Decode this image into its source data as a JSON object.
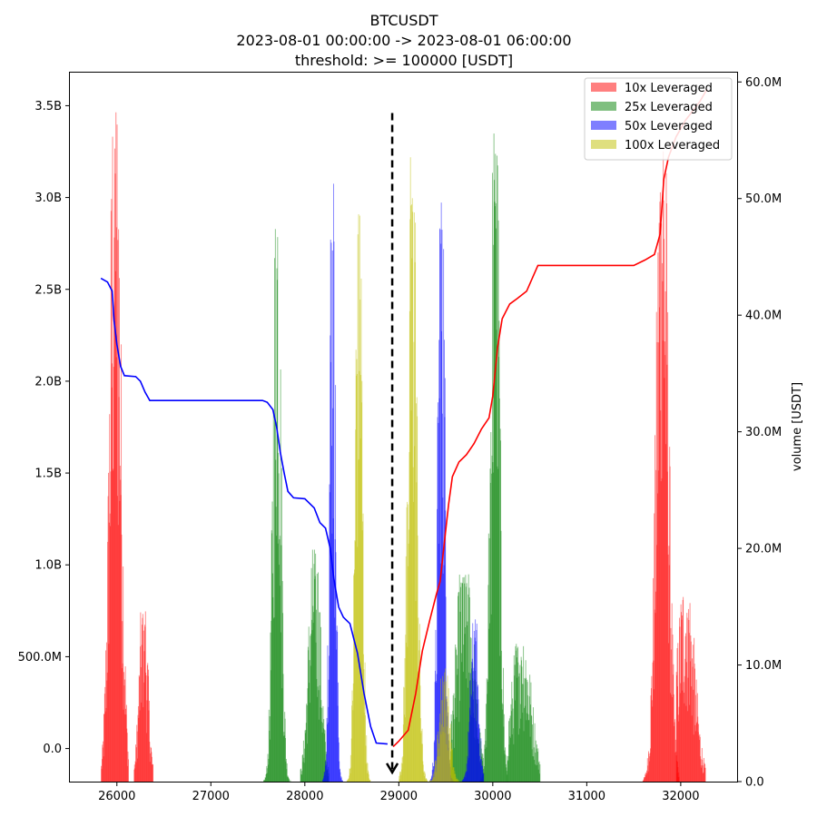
{
  "chart_data": {
    "type": "bar",
    "title_lines": [
      "BTCUSDT",
      "2023-08-01 00:00:00 -> 2023-08-01 06:00:00",
      "threshold: >= 100000 [USDT]"
    ],
    "xlim": [
      25500,
      32600
    ],
    "ylim_left": [
      -180000000,
      3680000000
    ],
    "ylim_right": [
      0,
      60800000
    ],
    "ylabel_right": "volume [USDT]",
    "x_ticks": [
      {
        "value": 26000,
        "label": "26000"
      },
      {
        "value": 27000,
        "label": "27000"
      },
      {
        "value": 28000,
        "label": "28000"
      },
      {
        "value": 29000,
        "label": "29000"
      },
      {
        "value": 30000,
        "label": "30000"
      },
      {
        "value": 31000,
        "label": "31000"
      },
      {
        "value": 32000,
        "label": "32000"
      }
    ],
    "y_left_ticks": [
      {
        "value": 0,
        "label": "0.0"
      },
      {
        "value": 500000000,
        "label": "500.0M"
      },
      {
        "value": 1000000000,
        "label": "1.0B"
      },
      {
        "value": 1500000000,
        "label": "1.5B"
      },
      {
        "value": 2000000000,
        "label": "2.0B"
      },
      {
        "value": 2500000000,
        "label": "2.5B"
      },
      {
        "value": 3000000000,
        "label": "3.0B"
      },
      {
        "value": 3500000000,
        "label": "3.5B"
      }
    ],
    "y_right_ticks": [
      {
        "value": 0,
        "label": "0.0"
      },
      {
        "value": 10000000,
        "label": "10.0M"
      },
      {
        "value": 20000000,
        "label": "20.0M"
      },
      {
        "value": 30000000,
        "label": "30.0M"
      },
      {
        "value": 40000000,
        "label": "40.0M"
      },
      {
        "value": 50000000,
        "label": "50.0M"
      },
      {
        "value": 60000000,
        "label": "60.0M"
      }
    ],
    "legend_position": "top-right",
    "series": [
      {
        "name": "10x Leveraged",
        "color": "#ff0000",
        "opacity": 0.5,
        "clusters": [
          {
            "center": 25980,
            "spread": 55,
            "peak": 59000000,
            "from": 25830,
            "to": 26120
          },
          {
            "center": 26280,
            "spread": 45,
            "peak": 15000000,
            "from": 26180,
            "to": 26380
          },
          {
            "center": 31800,
            "spread": 60,
            "peak": 56000000,
            "from": 31550,
            "to": 31980
          },
          {
            "center": 32050,
            "spread": 90,
            "peak": 16000000,
            "from": 31950,
            "to": 32260
          }
        ]
      },
      {
        "name": "25x Leveraged",
        "color": "#008000",
        "opacity": 0.5,
        "clusters": [
          {
            "center": 27700,
            "spread": 40,
            "peak": 50000000,
            "from": 27550,
            "to": 27850
          },
          {
            "center": 28100,
            "spread": 60,
            "peak": 20000000,
            "from": 27950,
            "to": 28250
          },
          {
            "center": 30020,
            "spread": 45,
            "peak": 57000000,
            "from": 29800,
            "to": 30150
          },
          {
            "center": 29700,
            "spread": 90,
            "peak": 18000000,
            "from": 29550,
            "to": 29900
          },
          {
            "center": 30300,
            "spread": 100,
            "peak": 12000000,
            "from": 30150,
            "to": 30500
          }
        ]
      },
      {
        "name": "50x Leveraged",
        "color": "#0000ff",
        "opacity": 0.5,
        "clusters": [
          {
            "center": 28290,
            "spread": 30,
            "peak": 52000000,
            "from": 28150,
            "to": 28400
          },
          {
            "center": 29450,
            "spread": 35,
            "peak": 53000000,
            "from": 29320,
            "to": 29580
          },
          {
            "center": 29800,
            "spread": 40,
            "peak": 14000000,
            "from": 29650,
            "to": 29900
          }
        ]
      },
      {
        "name": "100x Leveraged",
        "color": "#bfbf00",
        "opacity": 0.5,
        "clusters": [
          {
            "center": 28570,
            "spread": 35,
            "peak": 52000000,
            "from": 28420,
            "to": 28750
          },
          {
            "center": 29140,
            "spread": 45,
            "peak": 54000000,
            "from": 29000,
            "to": 29300
          },
          {
            "center": 29480,
            "spread": 50,
            "peak": 10000000,
            "from": 29250,
            "to": 29650
          }
        ]
      }
    ],
    "cumulative_lines": [
      {
        "color": "#0000ff",
        "points": [
          [
            25830,
            2560000000
          ],
          [
            25900,
            2540000000
          ],
          [
            25950,
            2490000000
          ],
          [
            25970,
            2330000000
          ],
          [
            26000,
            2200000000
          ],
          [
            26040,
            2080000000
          ],
          [
            26080,
            2030000000
          ],
          [
            26200,
            2025000000
          ],
          [
            26250,
            2000000000
          ],
          [
            26300,
            1940000000
          ],
          [
            26350,
            1895000000
          ],
          [
            26500,
            1895000000
          ],
          [
            27000,
            1895000000
          ],
          [
            27550,
            1895000000
          ],
          [
            27600,
            1885000000
          ],
          [
            27660,
            1845000000
          ],
          [
            27700,
            1750000000
          ],
          [
            27740,
            1610000000
          ],
          [
            27780,
            1500000000
          ],
          [
            27820,
            1400000000
          ],
          [
            27880,
            1365000000
          ],
          [
            28000,
            1360000000
          ],
          [
            28100,
            1310000000
          ],
          [
            28160,
            1230000000
          ],
          [
            28220,
            1200000000
          ],
          [
            28270,
            1090000000
          ],
          [
            28310,
            920000000
          ],
          [
            28360,
            770000000
          ],
          [
            28410,
            715000000
          ],
          [
            28480,
            680000000
          ],
          [
            28560,
            520000000
          ],
          [
            28630,
            300000000
          ],
          [
            28700,
            120000000
          ],
          [
            28760,
            30000000
          ],
          [
            28880,
            25000000
          ]
        ]
      },
      {
        "color": "#ff0000",
        "points": [
          [
            28940,
            10000000
          ],
          [
            29000,
            40000000
          ],
          [
            29100,
            100000000
          ],
          [
            29180,
            300000000
          ],
          [
            29250,
            530000000
          ],
          [
            29330,
            700000000
          ],
          [
            29400,
            840000000
          ],
          [
            29440,
            910000000
          ],
          [
            29480,
            1100000000
          ],
          [
            29530,
            1330000000
          ],
          [
            29570,
            1480000000
          ],
          [
            29640,
            1560000000
          ],
          [
            29720,
            1600000000
          ],
          [
            29800,
            1660000000
          ],
          [
            29880,
            1740000000
          ],
          [
            29960,
            1800000000
          ],
          [
            30000,
            1920000000
          ],
          [
            30050,
            2180000000
          ],
          [
            30100,
            2340000000
          ],
          [
            30180,
            2420000000
          ],
          [
            30260,
            2450000000
          ],
          [
            30360,
            2490000000
          ],
          [
            30480,
            2630000000
          ],
          [
            30700,
            2630000000
          ],
          [
            31000,
            2630000000
          ],
          [
            31500,
            2630000000
          ],
          [
            31620,
            2660000000
          ],
          [
            31720,
            2690000000
          ],
          [
            31780,
            2800000000
          ],
          [
            31820,
            3100000000
          ],
          [
            31870,
            3220000000
          ],
          [
            31950,
            3330000000
          ],
          [
            32050,
            3420000000
          ],
          [
            32200,
            3520000000
          ],
          [
            32280,
            3590000000
          ]
        ]
      }
    ],
    "current_price_arrow": {
      "x": 28930,
      "y_top": 3460000000,
      "y_bottom": -130000000
    }
  }
}
